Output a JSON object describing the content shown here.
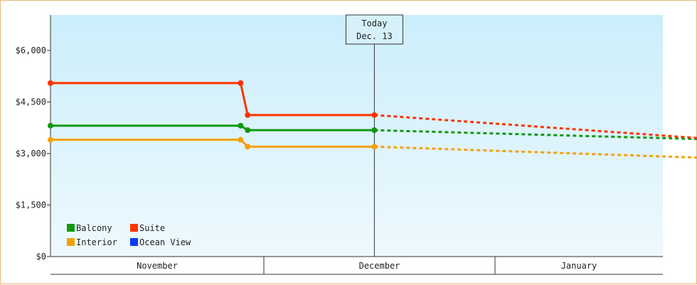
{
  "chart_data": {
    "type": "line",
    "y_ticks": [
      "$0",
      "$1,500",
      "$3,000",
      "$4,500",
      "$6,000"
    ],
    "y_tick_values": [
      0,
      1500,
      3000,
      4500,
      6000
    ],
    "ylim": [
      0,
      6000
    ],
    "x_bands": [
      "November",
      "December",
      "January"
    ],
    "today_marker": {
      "label1": "Today",
      "label2": "Dec. 13"
    },
    "grid": false,
    "legend_position": "bottom-left",
    "series": [
      {
        "name": "Suite",
        "color": "#ff3300",
        "points": [
          [
            "Oct 28",
            5050
          ],
          [
            "Nov 24",
            5050
          ],
          [
            "Nov 25",
            4120
          ],
          [
            "Dec 13",
            4120
          ]
        ],
        "projection": [
          [
            "Dec 13",
            4120
          ],
          [
            "Jan 28",
            3450
          ]
        ]
      },
      {
        "name": "Balcony",
        "color": "#119911",
        "points": [
          [
            "Oct 28",
            3810
          ],
          [
            "Nov 24",
            3810
          ],
          [
            "Nov 25",
            3680
          ],
          [
            "Dec 13",
            3680
          ]
        ],
        "projection": [
          [
            "Dec 13",
            3680
          ],
          [
            "Jan 28",
            3420
          ]
        ]
      },
      {
        "name": "Interior",
        "color": "#f5a00a",
        "points": [
          [
            "Oct 28",
            3400
          ],
          [
            "Nov 24",
            3400
          ],
          [
            "Nov 25",
            3200
          ],
          [
            "Dec 13",
            3200
          ]
        ],
        "projection": [
          [
            "Dec 13",
            3200
          ],
          [
            "Jan 28",
            2880
          ]
        ]
      },
      {
        "name": "Ocean View",
        "color": "#0b3bf5",
        "points": [],
        "projection": []
      }
    ],
    "legend": [
      {
        "name": "Balcony",
        "color": "#119911"
      },
      {
        "name": "Suite",
        "color": "#ff3300"
      },
      {
        "name": "Interior",
        "color": "#f5a00a"
      },
      {
        "name": "Ocean View",
        "color": "#0b3bf5"
      }
    ]
  }
}
